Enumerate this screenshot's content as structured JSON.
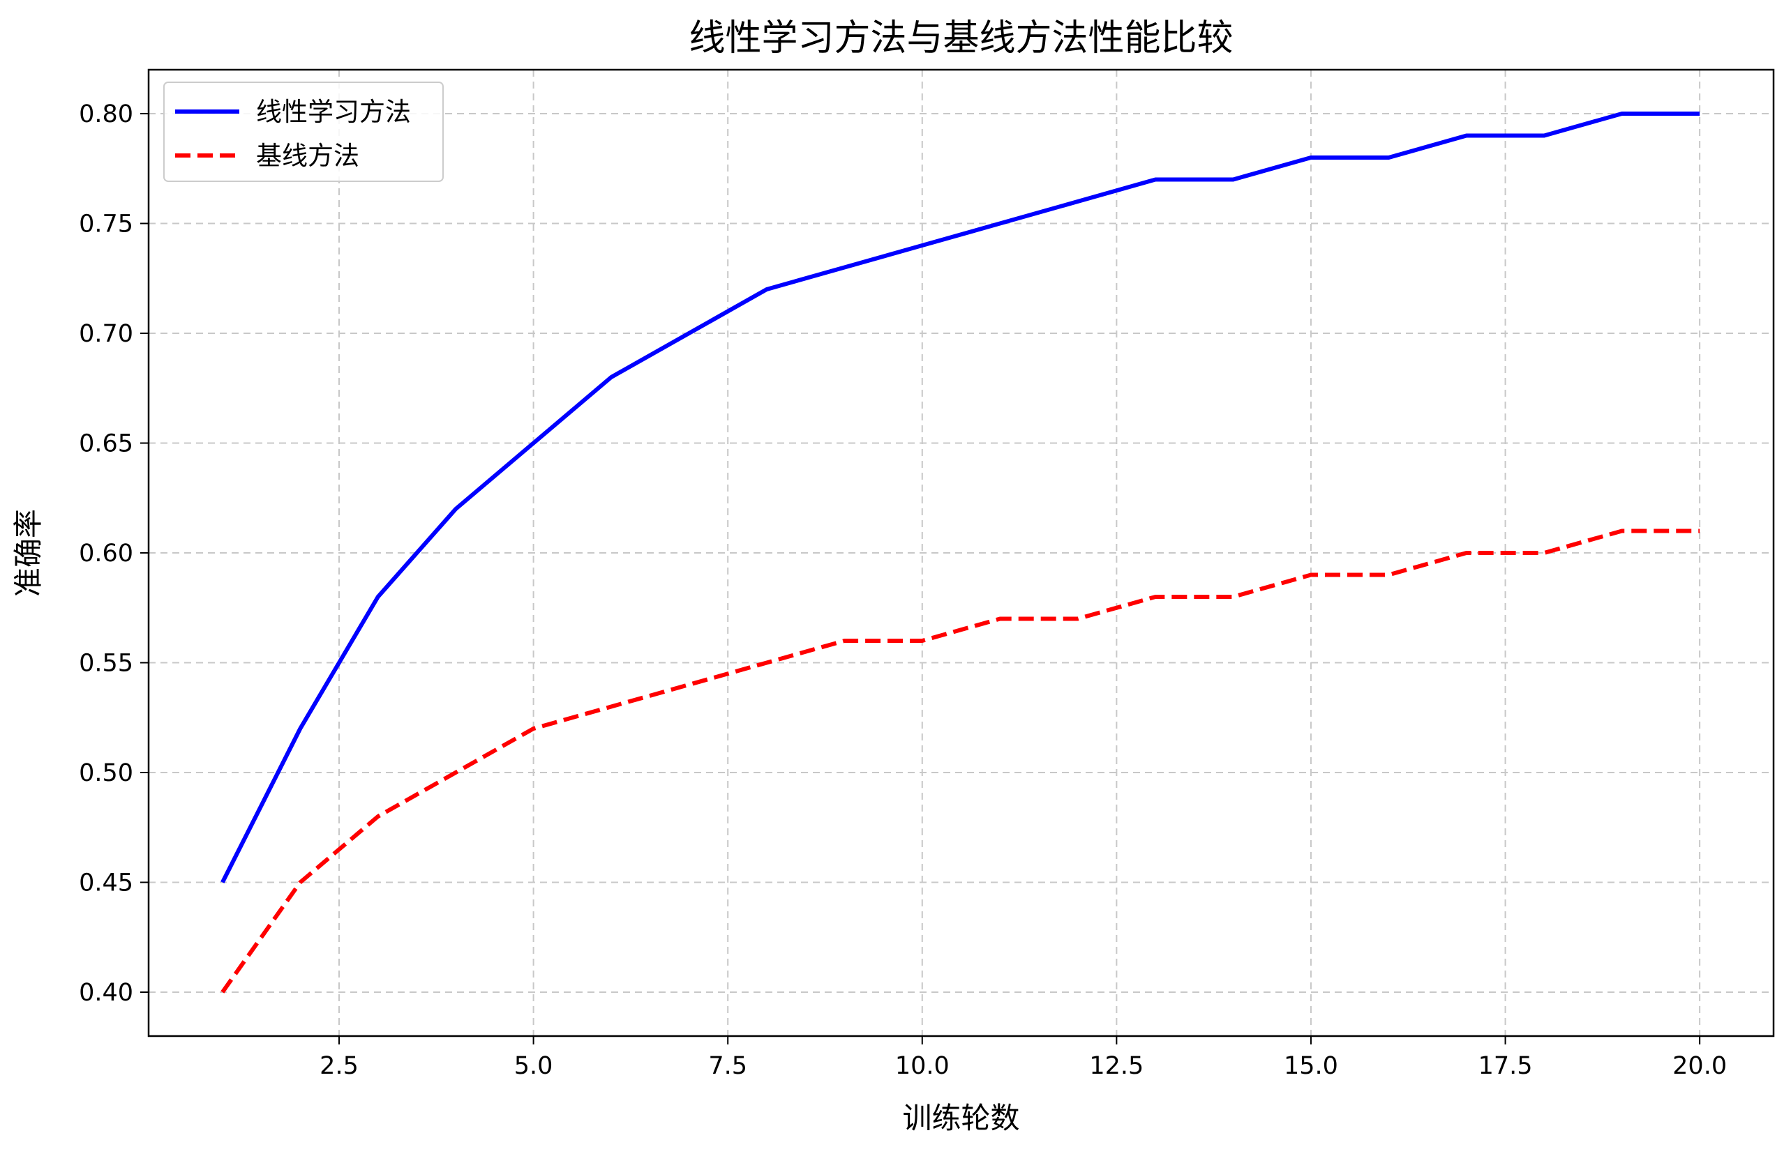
{
  "chart_data": {
    "type": "line",
    "title": "线性学习方法与基线方法性能比较",
    "xlabel": "训练轮数",
    "ylabel": "准确率",
    "x": [
      1,
      2,
      3,
      4,
      5,
      6,
      7,
      8,
      9,
      10,
      11,
      12,
      13,
      14,
      15,
      16,
      17,
      18,
      19,
      20
    ],
    "series": [
      {
        "name": "线性学习方法",
        "color": "#0000ff",
        "style": "solid",
        "values": [
          0.45,
          0.52,
          0.58,
          0.62,
          0.65,
          0.68,
          0.7,
          0.72,
          0.73,
          0.74,
          0.75,
          0.76,
          0.77,
          0.77,
          0.78,
          0.78,
          0.79,
          0.79,
          0.8,
          0.8
        ]
      },
      {
        "name": "基线方法",
        "color": "#ff0000",
        "style": "dashed",
        "values": [
          0.4,
          0.45,
          0.48,
          0.5,
          0.52,
          0.53,
          0.54,
          0.55,
          0.56,
          0.56,
          0.57,
          0.57,
          0.58,
          0.58,
          0.59,
          0.59,
          0.6,
          0.6,
          0.61,
          0.61
        ]
      }
    ],
    "xlim": [
      0.05,
      20.95
    ],
    "ylim": [
      0.38,
      0.82
    ],
    "xticks": [
      2.5,
      5.0,
      7.5,
      10.0,
      12.5,
      15.0,
      17.5,
      20.0
    ],
    "xtick_labels": [
      "2.5",
      "5.0",
      "7.5",
      "10.0",
      "12.5",
      "15.0",
      "17.5",
      "20.0"
    ],
    "yticks": [
      0.4,
      0.45,
      0.5,
      0.55,
      0.6,
      0.65,
      0.7,
      0.75,
      0.8
    ],
    "ytick_labels": [
      "0.40",
      "0.45",
      "0.50",
      "0.55",
      "0.60",
      "0.65",
      "0.70",
      "0.75",
      "0.80"
    ],
    "grid": true,
    "legend_position": "upper-left"
  }
}
